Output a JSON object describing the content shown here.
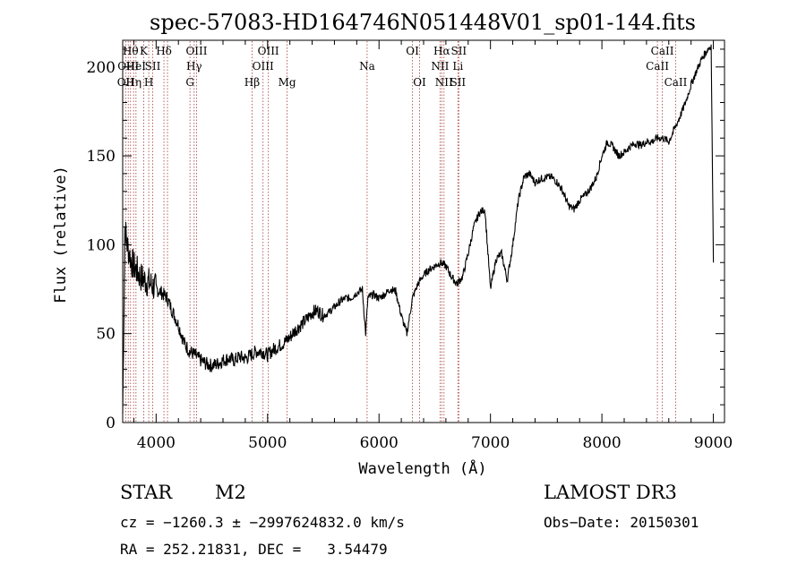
{
  "chart_data": {
    "type": "line",
    "title": "spec-57083-HD164746N051448V01_sp01-144.fits",
    "xlabel": "Wavelength (Å)",
    "ylabel": "Flux (relative)",
    "xlim": [
      3700,
      9100
    ],
    "ylim": [
      0,
      215
    ],
    "xticks": [
      4000,
      5000,
      6000,
      7000,
      8000,
      9000
    ],
    "yticks": [
      0,
      50,
      100,
      150,
      200
    ],
    "grid": false,
    "series": [
      {
        "name": "flux",
        "x": [
          3700,
          3720,
          3740,
          3760,
          3780,
          3800,
          3830,
          3860,
          3900,
          3950,
          4000,
          4050,
          4100,
          4150,
          4200,
          4250,
          4300,
          4350,
          4400,
          4450,
          4500,
          4550,
          4600,
          4650,
          4700,
          4750,
          4800,
          4850,
          4900,
          4950,
          5000,
          5050,
          5100,
          5150,
          5200,
          5250,
          5300,
          5350,
          5400,
          5450,
          5500,
          5550,
          5600,
          5650,
          5700,
          5750,
          5800,
          5850,
          5880,
          5900,
          5950,
          6000,
          6050,
          6100,
          6150,
          6200,
          6250,
          6300,
          6350,
          6400,
          6450,
          6500,
          6550,
          6600,
          6650,
          6700,
          6750,
          6800,
          6850,
          6900,
          6950,
          7000,
          7050,
          7100,
          7150,
          7200,
          7250,
          7300,
          7350,
          7400,
          7450,
          7500,
          7550,
          7600,
          7650,
          7700,
          7750,
          7800,
          7850,
          7900,
          7950,
          8000,
          8050,
          8100,
          8150,
          8200,
          8250,
          8300,
          8350,
          8400,
          8450,
          8500,
          8550,
          8600,
          8650,
          8700,
          8750,
          8800,
          8850,
          8900,
          8950,
          8980,
          9000
        ],
        "y": [
          5,
          110,
          100,
          95,
          90,
          88,
          85,
          82,
          80,
          78,
          75,
          73,
          70,
          62,
          55,
          45,
          40,
          38,
          35,
          33,
          32,
          33,
          35,
          36,
          35,
          37,
          36,
          38,
          40,
          40,
          38,
          41,
          43,
          45,
          48,
          52,
          55,
          58,
          62,
          63,
          60,
          62,
          65,
          68,
          70,
          70,
          73,
          75,
          50,
          70,
          72,
          70,
          72,
          75,
          74,
          60,
          50,
          70,
          78,
          83,
          86,
          88,
          90,
          88,
          82,
          78,
          82,
          95,
          110,
          118,
          120,
          75,
          92,
          95,
          80,
          100,
          125,
          138,
          140,
          135,
          137,
          138,
          138,
          135,
          130,
          122,
          120,
          125,
          128,
          132,
          138,
          150,
          158,
          155,
          150,
          152,
          155,
          157,
          156,
          158,
          158,
          160,
          160,
          158,
          165,
          172,
          180,
          190,
          198,
          205,
          210,
          212,
          90
        ]
      }
    ],
    "lines": [
      {
        "wl": 3727,
        "labels": [
          "OII"
        ],
        "rows": [
          3
        ]
      },
      {
        "wl": 3750,
        "labels": [
          "OIII"
        ],
        "rows": [
          2
        ]
      },
      {
        "wl": 3770,
        "labels": [
          "Hθ"
        ],
        "rows": [
          1
        ]
      },
      {
        "wl": 3798,
        "labels": [
          "Hη"
        ],
        "rows": [
          3
        ]
      },
      {
        "wl": 3819,
        "labels": [
          "HeI"
        ],
        "rows": [
          2
        ]
      },
      {
        "wl": 3889,
        "labels": [
          "K"
        ],
        "rows": [
          1
        ]
      },
      {
        "wl": 3934,
        "labels": [
          "H"
        ],
        "rows": [
          3
        ]
      },
      {
        "wl": 3969,
        "labels": [
          "SII"
        ],
        "rows": [
          2
        ]
      },
      {
        "wl": 4070,
        "labels": [
          "Hδ"
        ],
        "rows": [
          1
        ]
      },
      {
        "wl": 4102,
        "labels": [],
        "rows": []
      },
      {
        "wl": 4304,
        "labels": [
          "G"
        ],
        "rows": [
          3
        ]
      },
      {
        "wl": 4341,
        "labels": [
          "Hγ"
        ],
        "rows": [
          2
        ]
      },
      {
        "wl": 4363,
        "labels": [
          "OIII"
        ],
        "rows": [
          1
        ]
      },
      {
        "wl": 4861,
        "labels": [
          "Hβ"
        ],
        "rows": [
          3
        ]
      },
      {
        "wl": 4959,
        "labels": [
          "OIII"
        ],
        "rows": [
          2
        ]
      },
      {
        "wl": 5007,
        "labels": [
          "OIII"
        ],
        "rows": [
          1
        ]
      },
      {
        "wl": 5175,
        "labels": [
          "Mg"
        ],
        "rows": [
          3
        ]
      },
      {
        "wl": 5893,
        "labels": [
          "Na"
        ],
        "rows": [
          2
        ]
      },
      {
        "wl": 6300,
        "labels": [
          "OI"
        ],
        "rows": [
          1
        ]
      },
      {
        "wl": 6364,
        "labels": [
          "OI"
        ],
        "rows": [
          3
        ]
      },
      {
        "wl": 6548,
        "labels": [
          "NII"
        ],
        "rows": [
          2
        ]
      },
      {
        "wl": 6563,
        "labels": [
          "Hα"
        ],
        "rows": [
          1
        ]
      },
      {
        "wl": 6583,
        "labels": [
          "NII"
        ],
        "rows": [
          3
        ]
      },
      {
        "wl": 6708,
        "labels": [
          "Li",
          "SII"
        ],
        "rows": [
          2,
          3
        ]
      },
      {
        "wl": 6716,
        "labels": [
          "SII"
        ],
        "rows": [
          1
        ]
      },
      {
        "wl": 8498,
        "labels": [
          "CaII"
        ],
        "rows": [
          2
        ]
      },
      {
        "wl": 8542,
        "labels": [
          "CaII"
        ],
        "rows": [
          1
        ]
      },
      {
        "wl": 8662,
        "labels": [
          "CaII"
        ],
        "rows": [
          3
        ]
      }
    ]
  },
  "footer": {
    "object_class": "STAR",
    "subclass": "M2",
    "survey": "LAMOST DR3",
    "cz_line": "cz = −1260.3 ± −2997624832.0 km/s",
    "obs_date": "Obs−Date: 20150301",
    "coords_line": "RA = 252.21831, DEC =   3.54479"
  }
}
